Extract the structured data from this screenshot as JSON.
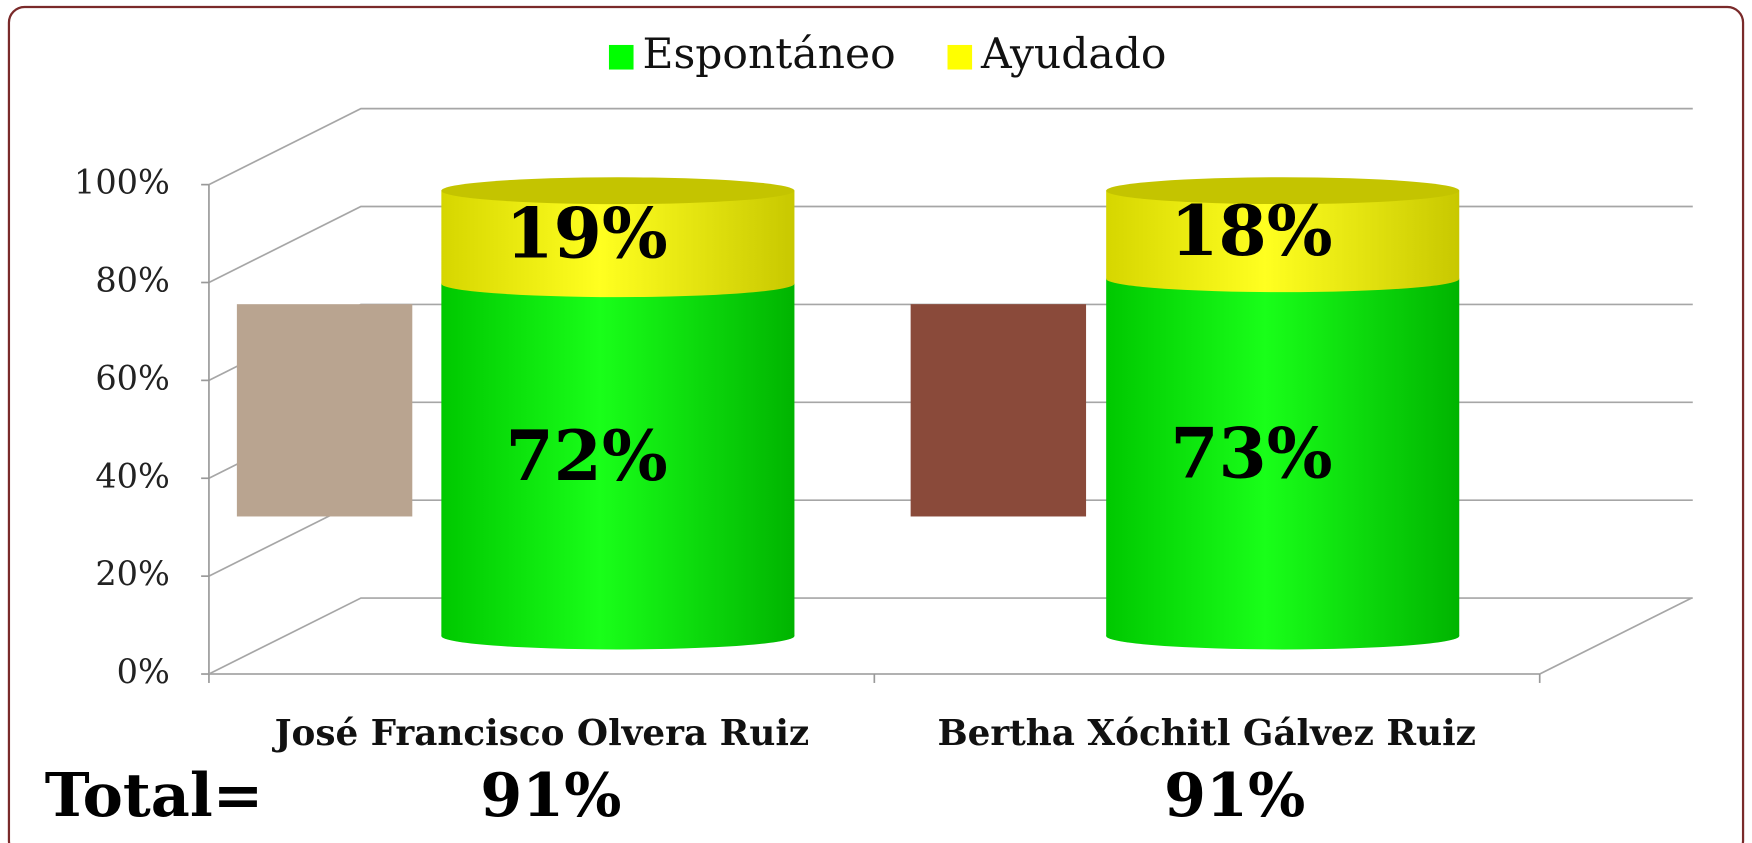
{
  "chart_data": {
    "type": "bar3d_stacked",
    "categories": [
      "José Francisco Olvera Ruiz",
      "Bertha Xóchitl Gálvez Ruiz"
    ],
    "series": [
      {
        "name": "Espontáneo",
        "color": "#00ff00",
        "values": [
          72,
          73
        ],
        "value_labels": [
          "72%",
          "73%"
        ]
      },
      {
        "name": "Ayudado",
        "color": "#ffff00",
        "values": [
          19,
          18
        ],
        "value_labels": [
          "19%",
          "18%"
        ]
      }
    ],
    "ylim": [
      0,
      100
    ],
    "yticks": [
      {
        "value": 0,
        "label": "0%"
      },
      {
        "value": 20,
        "label": "20%"
      },
      {
        "value": 40,
        "label": "40%"
      },
      {
        "value": 60,
        "label": "60%"
      },
      {
        "value": 80,
        "label": "80%"
      },
      {
        "value": 100,
        "label": "100%"
      }
    ],
    "grid": true,
    "legend": "top",
    "totals": {
      "label": "Total=",
      "values": [
        91,
        91
      ],
      "value_labels": [
        "91%",
        "91%"
      ]
    }
  }
}
